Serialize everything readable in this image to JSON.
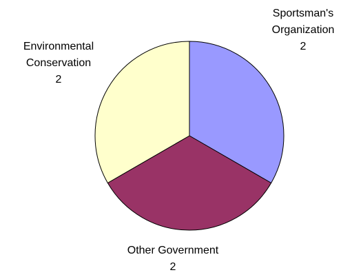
{
  "chart_data": {
    "type": "pie",
    "title": "",
    "slices": [
      {
        "label_lines": [
          "Sportsman's",
          "Organization"
        ],
        "value": 2,
        "value_label": "2",
        "color": "#9999ff"
      },
      {
        "label_lines": [
          "Other Government"
        ],
        "value": 2,
        "value_label": "2",
        "color": "#993366"
      },
      {
        "label_lines": [
          "Environmental",
          "Conservation"
        ],
        "value": 2,
        "value_label": "2",
        "color": "#ffffcc"
      }
    ],
    "start_angle_deg": 0,
    "direction": "clockwise",
    "legend": "none",
    "data_labels": "outside"
  }
}
